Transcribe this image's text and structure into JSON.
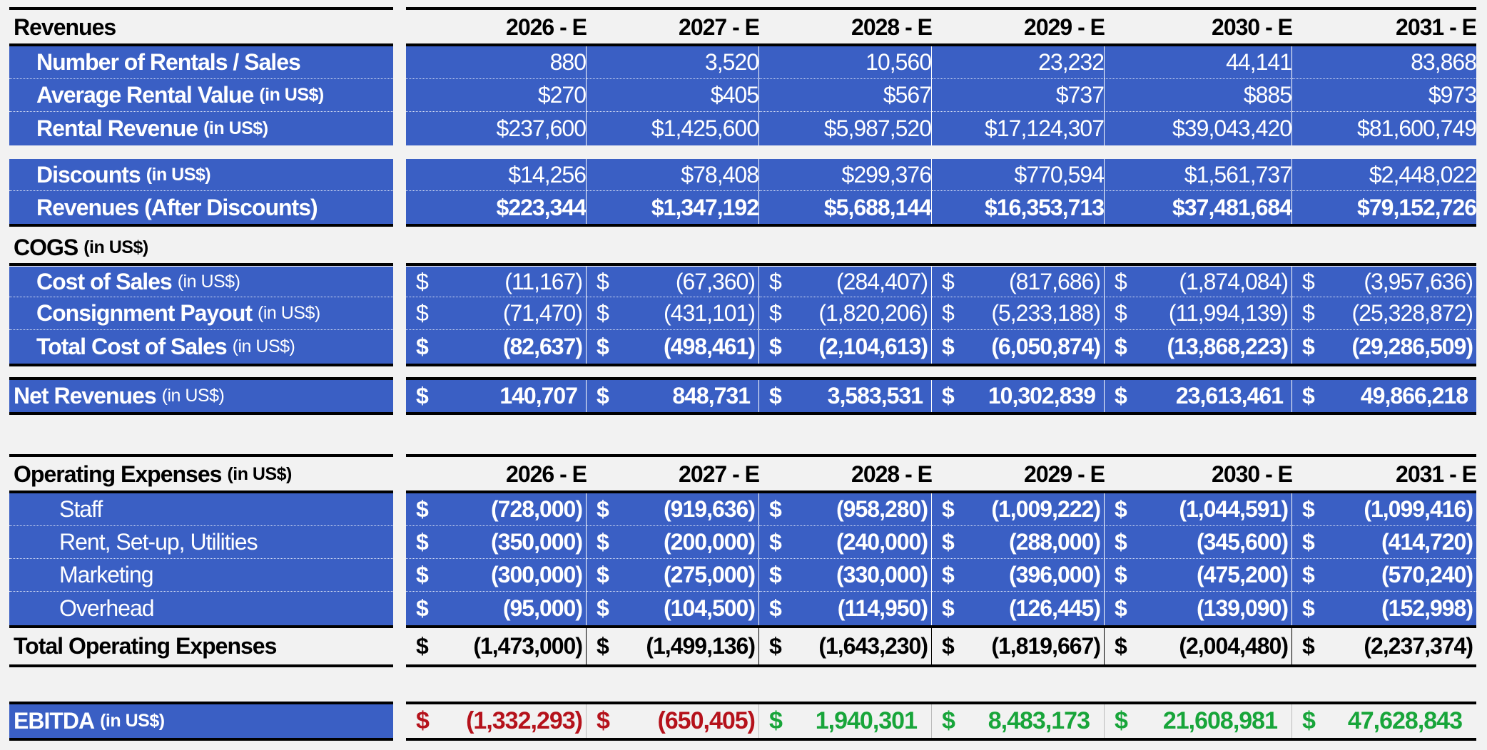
{
  "colors": {
    "blue": "#3a5fc4",
    "negative": "#b5121b",
    "positive": "#18a53a"
  },
  "revenues": {
    "header_label": "Revenues",
    "years": [
      "2026 - E",
      "2027 - E",
      "2028 - E",
      "2029 - E",
      "2030 - E",
      "2031 - E"
    ],
    "rows": [
      {
        "label": "Number of Rentals / Sales",
        "unit": "",
        "values": [
          "880",
          "3,520",
          "10,560",
          "23,232",
          "44,141",
          "83,868"
        ]
      },
      {
        "label": "Average Rental Value",
        "unit": "(in US$)",
        "values": [
          "$270",
          "$405",
          "$567",
          "$737",
          "$885",
          "$973"
        ]
      },
      {
        "label": "Rental Revenue",
        "unit": "(in US$)",
        "values": [
          "$237,600",
          "$1,425,600",
          "$5,987,520",
          "$17,124,307",
          "$39,043,420",
          "$81,600,749"
        ]
      }
    ],
    "discounts": {
      "label": "Discounts",
      "unit": "(in US$)",
      "values": [
        "$14,256",
        "$78,408",
        "$299,376",
        "$770,594",
        "$1,561,737",
        "$2,448,022"
      ]
    },
    "after_discounts": {
      "label": "Revenues (After Discounts)",
      "values": [
        "$223,344",
        "$1,347,192",
        "$5,688,144",
        "$16,353,713",
        "$37,481,684",
        "$79,152,726"
      ]
    }
  },
  "cogs": {
    "title": "COGS",
    "unit": "(in US$)",
    "currency": "$",
    "rows": [
      {
        "label": "Cost of Sales",
        "unit": "(in US$)",
        "values": [
          "(11,167)",
          "(67,360)",
          "(284,407)",
          "(817,686)",
          "(1,874,084)",
          "(3,957,636)"
        ]
      },
      {
        "label": "Consignment Payout",
        "unit": "(in US$)",
        "values": [
          "(71,470)",
          "(431,101)",
          "(1,820,206)",
          "(5,233,188)",
          "(11,994,139)",
          "(25,328,872)"
        ]
      }
    ],
    "total": {
      "label": "Total Cost of Sales",
      "unit": "(in US$)",
      "values": [
        "(82,637)",
        "(498,461)",
        "(2,104,613)",
        "(6,050,874)",
        "(13,868,223)",
        "(29,286,509)"
      ]
    }
  },
  "net_revenues": {
    "label": "Net Revenues",
    "unit": "(in US$)",
    "values": [
      "140,707",
      "848,731",
      "3,583,531",
      "10,302,839",
      "23,613,461",
      "49,866,218"
    ]
  },
  "opex": {
    "header_label": "Operating Expenses",
    "unit": "(in US$)",
    "years": [
      "2026 - E",
      "2027 - E",
      "2028 - E",
      "2029 - E",
      "2030 - E",
      "2031 - E"
    ],
    "rows": [
      {
        "label": "Staff",
        "values": [
          "(728,000)",
          "(919,636)",
          "(958,280)",
          "(1,009,222)",
          "(1,044,591)",
          "(1,099,416)"
        ]
      },
      {
        "label": "Rent, Set-up, Utilities",
        "values": [
          "(350,000)",
          "(200,000)",
          "(240,000)",
          "(288,000)",
          "(345,600)",
          "(414,720)"
        ]
      },
      {
        "label": "Marketing",
        "values": [
          "(300,000)",
          "(275,000)",
          "(330,000)",
          "(396,000)",
          "(475,200)",
          "(570,240)"
        ]
      },
      {
        "label": "Overhead",
        "values": [
          "(95,000)",
          "(104,500)",
          "(114,950)",
          "(126,445)",
          "(139,090)",
          "(152,998)"
        ]
      }
    ],
    "total": {
      "label": "Total Operating Expenses",
      "values": [
        "(1,473,000)",
        "(1,499,136)",
        "(1,643,230)",
        "(1,819,667)",
        "(2,004,480)",
        "(2,237,374)"
      ]
    }
  },
  "ebitda": {
    "label": "EBITDA",
    "unit": "(in US$)",
    "values": [
      "(1,332,293)",
      "(650,405)",
      "1,940,301",
      "8,483,173",
      "21,608,981",
      "47,628,843"
    ],
    "signs": [
      "negative",
      "negative",
      "positive",
      "positive",
      "positive",
      "positive"
    ]
  }
}
